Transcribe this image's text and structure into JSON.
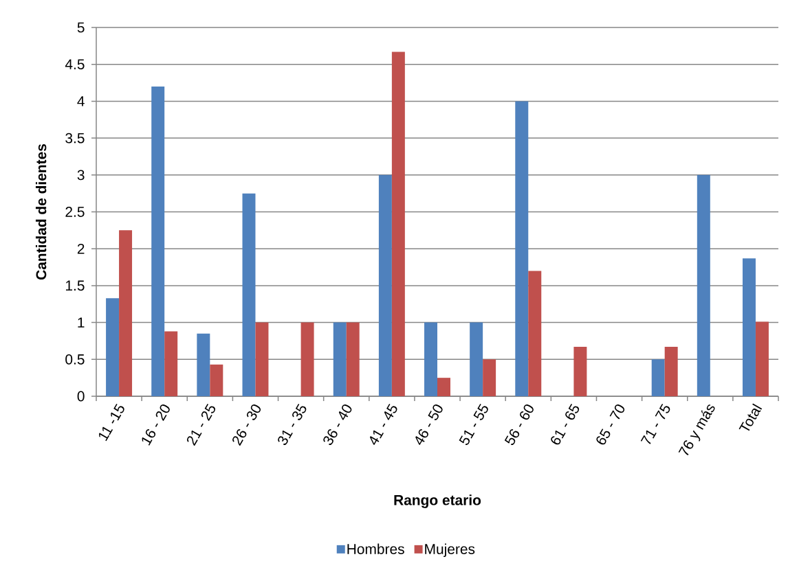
{
  "chart_data": {
    "type": "bar",
    "xlabel": "Rango etario",
    "ylabel": "Cantidad de dientes",
    "categories": [
      "11 -15",
      "16 - 20",
      "21 - 25",
      "26 - 30",
      "31 - 35",
      "36 - 40",
      "41 - 45",
      "46 - 50",
      "51 - 55",
      "56 - 60",
      "61 - 65",
      "65 - 70",
      "71 - 75",
      "76 y más",
      "Total"
    ],
    "series": [
      {
        "name": "Hombres",
        "color": "#4f81bd",
        "values": [
          1.33,
          4.2,
          0.85,
          2.75,
          0,
          1,
          3,
          1,
          1,
          4,
          0,
          0,
          0.5,
          3,
          1.87
        ]
      },
      {
        "name": "Mujeres",
        "color": "#c0504d",
        "values": [
          2.25,
          0.88,
          0.43,
          1,
          1,
          1,
          4.67,
          0.25,
          0.5,
          1.7,
          0.67,
          0,
          0.67,
          0,
          1.01
        ]
      }
    ],
    "ylim": [
      0,
      5
    ],
    "yticks": [
      0,
      0.5,
      1,
      1.5,
      2,
      2.5,
      3,
      3.5,
      4,
      4.5,
      5
    ],
    "grid": "y",
    "legend": "bottom"
  }
}
